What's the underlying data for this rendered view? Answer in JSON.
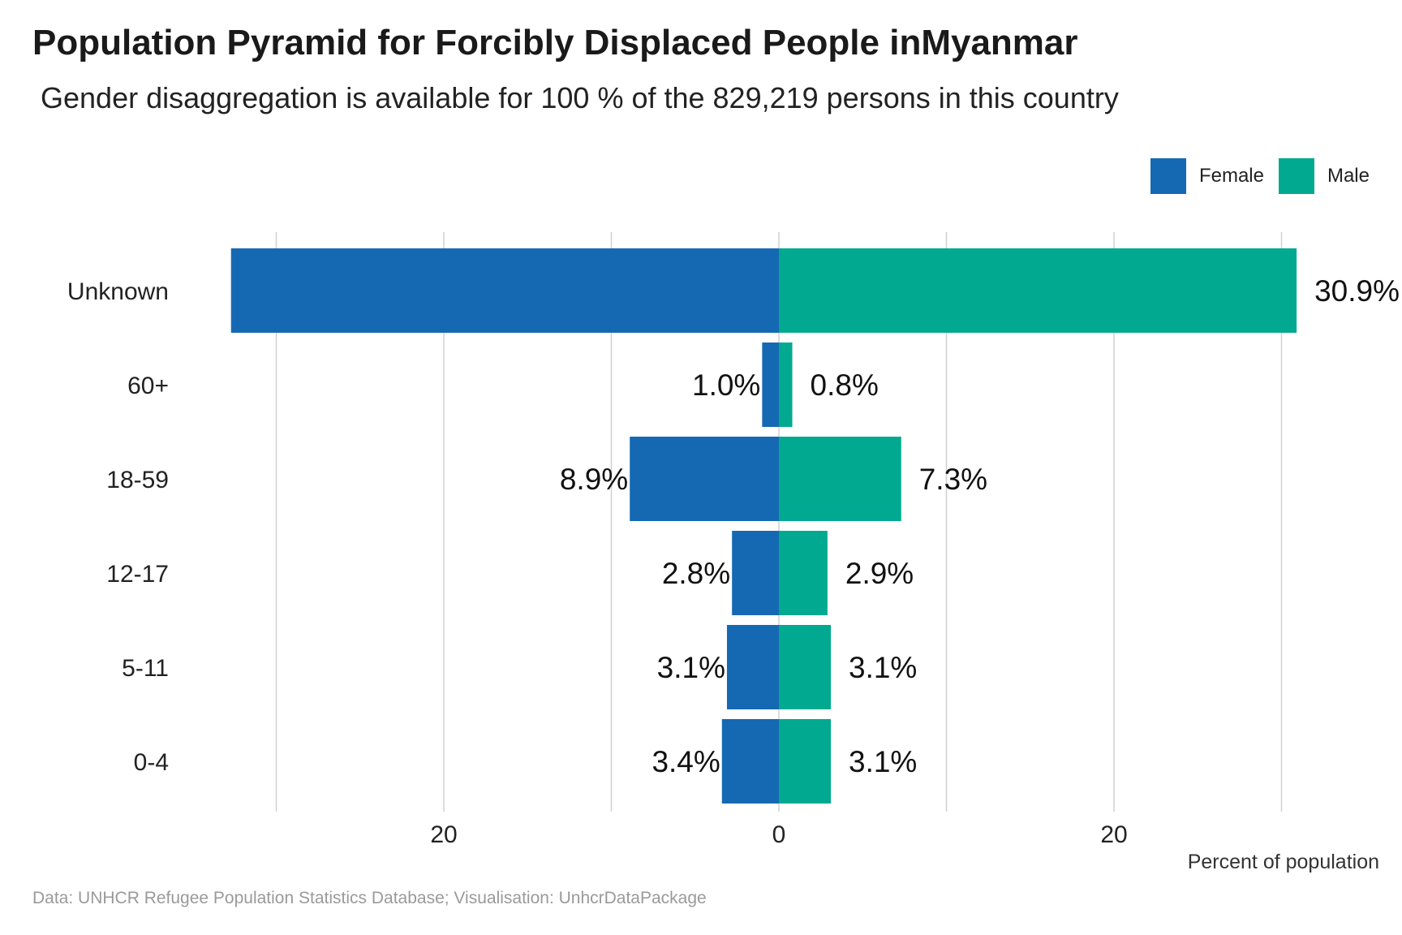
{
  "title": "Population Pyramid for Forcibly Displaced People inMyanmar",
  "subtitle": "Gender disaggregation is available for 100 % of the 829,219 persons in this country",
  "caption": "Data: UNHCR Refugee Population Statistics Database; Visualisation: UnhcrDataPackage",
  "legend": {
    "female_label": "Female",
    "male_label": "Male"
  },
  "colors": {
    "female": "#1569b3",
    "male": "#00a990",
    "grid": "#d0d0d0"
  },
  "chart_data": {
    "type": "bar",
    "orientation": "horizontal-diverging",
    "categories": [
      "Unknown",
      "60+",
      "18-59",
      "12-17",
      "5-11",
      "0-4"
    ],
    "series": [
      {
        "name": "Female",
        "values": [
          32.7,
          1.0,
          8.9,
          2.8,
          3.1,
          3.4
        ],
        "labels": [
          "",
          "1.0%",
          "8.9%",
          "2.8%",
          "3.1%",
          "3.4%"
        ]
      },
      {
        "name": "Male",
        "values": [
          30.9,
          0.8,
          7.3,
          2.9,
          3.1,
          3.1
        ],
        "labels": [
          "30.9%",
          "0.8%",
          "7.3%",
          "2.9%",
          "3.1%",
          "3.1%"
        ]
      }
    ],
    "xlabel": "Percent of population",
    "xticks": [
      "20",
      "0",
      "20"
    ],
    "xtick_values": [
      -20,
      0,
      20
    ],
    "xlim": [
      -30,
      30
    ],
    "grid": true,
    "legend_position": "top-right"
  }
}
